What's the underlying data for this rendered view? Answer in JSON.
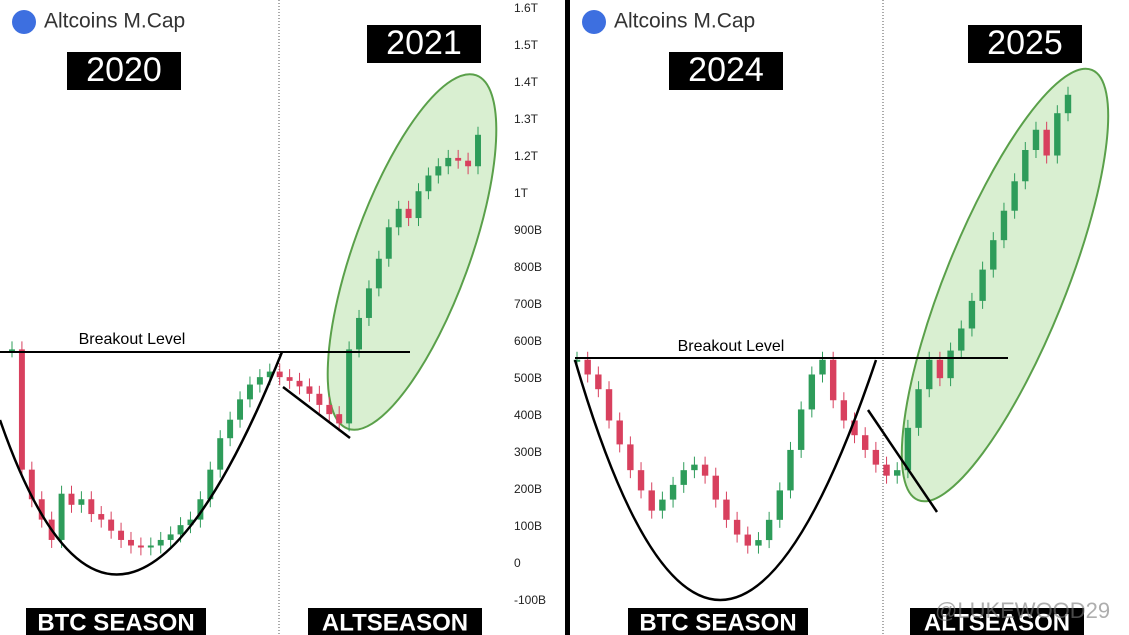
{
  "chart_data": [
    {
      "type": "candlestick",
      "title": "Altcoins M.Cap",
      "annotations": [
        "2020",
        "2021",
        "Breakout Level",
        "BTC SEASON",
        "ALTSEASON"
      ],
      "values": [
        580,
        255,
        175,
        120,
        65,
        190,
        160,
        175,
        135,
        120,
        90,
        65,
        50,
        45,
        50,
        65,
        80,
        105,
        120,
        175,
        255,
        340,
        390,
        445,
        485,
        505,
        520,
        505,
        495,
        480,
        460,
        430,
        405,
        380,
        580,
        665,
        745,
        825,
        910,
        960,
        935,
        1015,
        1100,
        1150,
        1195,
        1180,
        1150,
        1260
      ],
      "up_color": "#2e9c5a",
      "down_color": "#d8405e",
      "ylim": [
        -100,
        1600
      ],
      "yticks": [
        {
          "value": -100,
          "label": "-100B"
        },
        0,
        {
          "value": 100,
          "label": "100B"
        },
        {
          "value": 200,
          "label": "200B"
        },
        {
          "value": 300,
          "label": "300B"
        },
        {
          "value": 400,
          "label": "400B"
        },
        {
          "value": 500,
          "label": "500B"
        },
        {
          "value": 600,
          "label": "600B"
        },
        {
          "value": 700,
          "label": "700B"
        },
        {
          "value": 800,
          "label": "800B"
        },
        {
          "value": 900,
          "label": "900B"
        },
        {
          "value": 1000,
          "label": "1T"
        },
        {
          "value": 1200,
          "label": "1.2T"
        },
        {
          "value": 1300,
          "label": "1.3T"
        },
        {
          "value": 1400,
          "label": "1.4T"
        },
        {
          "value": 1500,
          "label": "1.5T"
        },
        {
          "value": 1600,
          "label": "1.6T"
        }
      ]
    },
    {
      "type": "candlestick",
      "title": "Altcoins M.Cap",
      "annotations": [
        "2024",
        "2025",
        "Breakout Level",
        "BTC SEASON",
        "ALTSEASON"
      ],
      "values": [
        555,
        515,
        475,
        390,
        325,
        255,
        200,
        145,
        175,
        215,
        255,
        270,
        240,
        175,
        120,
        80,
        50,
        65,
        120,
        200,
        310,
        420,
        515,
        555,
        445,
        390,
        350,
        310,
        270,
        240,
        255,
        370,
        475,
        555,
        505,
        580,
        640,
        715,
        800,
        880,
        960,
        1040,
        1125,
        1180,
        1110,
        1225,
        1275
      ],
      "up_color": "#2e9c5a",
      "down_color": "#d8405e",
      "ylim": [
        0,
        1500
      ]
    }
  ],
  "watermark": "@LUKEWOOD29"
}
